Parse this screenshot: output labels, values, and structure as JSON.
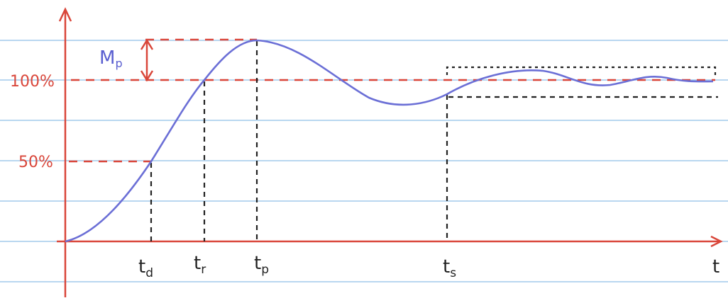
{
  "overshoot": {
    "base": "M",
    "sub": "p"
  },
  "y_labels": {
    "full": "100%",
    "half": "50%"
  },
  "times": {
    "delay": {
      "base": "t",
      "sub": "d"
    },
    "rise": {
      "base": "t",
      "sub": "r"
    },
    "peak": {
      "base": "t",
      "sub": "p"
    },
    "settling": {
      "base": "t",
      "sub": "s"
    }
  },
  "x_axis_label": "t"
}
